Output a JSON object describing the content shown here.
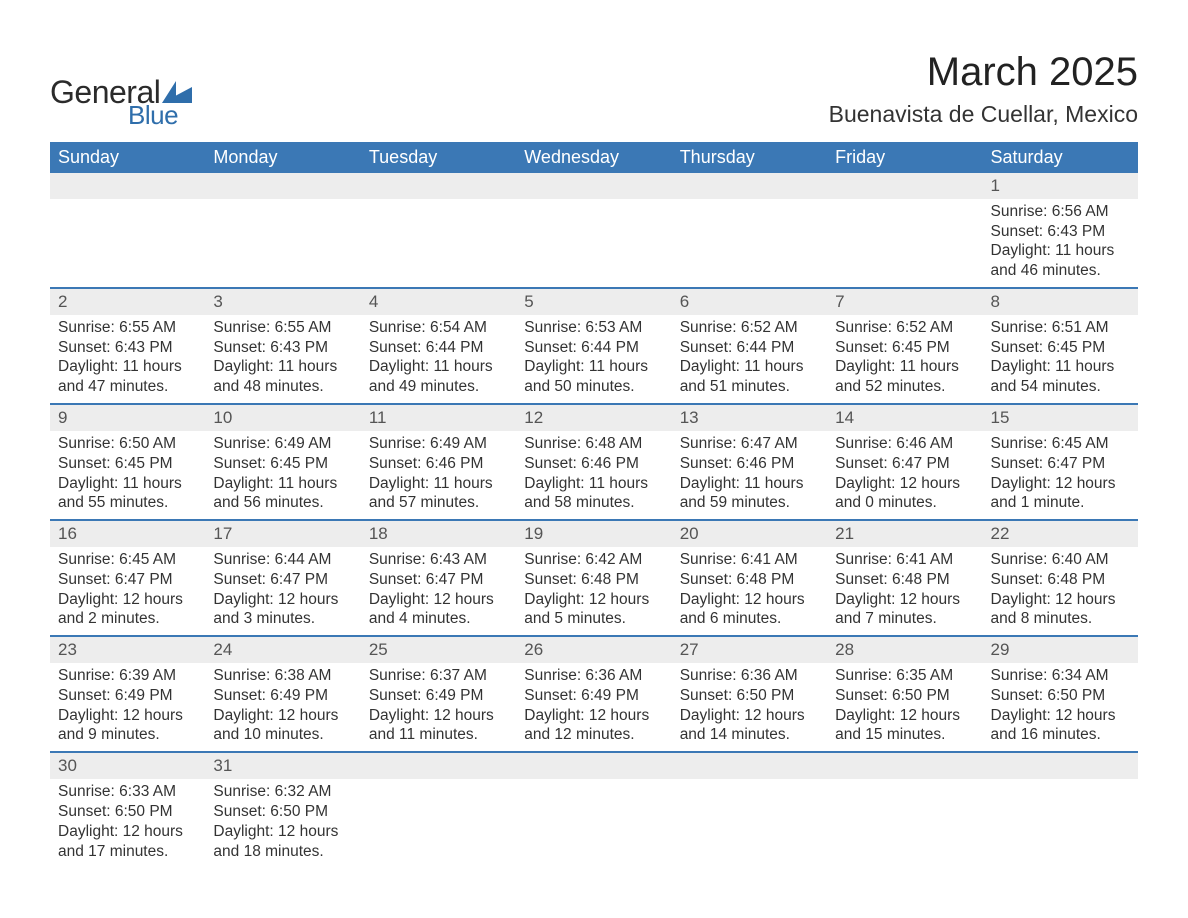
{
  "brand": {
    "word1": "General",
    "word2": "Blue",
    "accent_color": "#2f6eab"
  },
  "title": "March 2025",
  "location": "Buenavista de Cuellar, Mexico",
  "header_bg": "#3b78b5",
  "header_fg": "#ffffff",
  "daynum_bg": "#ededed",
  "divider_color": "#3b78b5",
  "text_color": "#333333",
  "day_headers": [
    "Sunday",
    "Monday",
    "Tuesday",
    "Wednesday",
    "Thursday",
    "Friday",
    "Saturday"
  ],
  "weeks": [
    [
      null,
      null,
      null,
      null,
      null,
      null,
      {
        "n": "1",
        "sunrise": "Sunrise: 6:56 AM",
        "sunset": "Sunset: 6:43 PM",
        "d1": "Daylight: 11 hours",
        "d2": "and 46 minutes."
      }
    ],
    [
      {
        "n": "2",
        "sunrise": "Sunrise: 6:55 AM",
        "sunset": "Sunset: 6:43 PM",
        "d1": "Daylight: 11 hours",
        "d2": "and 47 minutes."
      },
      {
        "n": "3",
        "sunrise": "Sunrise: 6:55 AM",
        "sunset": "Sunset: 6:43 PM",
        "d1": "Daylight: 11 hours",
        "d2": "and 48 minutes."
      },
      {
        "n": "4",
        "sunrise": "Sunrise: 6:54 AM",
        "sunset": "Sunset: 6:44 PM",
        "d1": "Daylight: 11 hours",
        "d2": "and 49 minutes."
      },
      {
        "n": "5",
        "sunrise": "Sunrise: 6:53 AM",
        "sunset": "Sunset: 6:44 PM",
        "d1": "Daylight: 11 hours",
        "d2": "and 50 minutes."
      },
      {
        "n": "6",
        "sunrise": "Sunrise: 6:52 AM",
        "sunset": "Sunset: 6:44 PM",
        "d1": "Daylight: 11 hours",
        "d2": "and 51 minutes."
      },
      {
        "n": "7",
        "sunrise": "Sunrise: 6:52 AM",
        "sunset": "Sunset: 6:45 PM",
        "d1": "Daylight: 11 hours",
        "d2": "and 52 minutes."
      },
      {
        "n": "8",
        "sunrise": "Sunrise: 6:51 AM",
        "sunset": "Sunset: 6:45 PM",
        "d1": "Daylight: 11 hours",
        "d2": "and 54 minutes."
      }
    ],
    [
      {
        "n": "9",
        "sunrise": "Sunrise: 6:50 AM",
        "sunset": "Sunset: 6:45 PM",
        "d1": "Daylight: 11 hours",
        "d2": "and 55 minutes."
      },
      {
        "n": "10",
        "sunrise": "Sunrise: 6:49 AM",
        "sunset": "Sunset: 6:45 PM",
        "d1": "Daylight: 11 hours",
        "d2": "and 56 minutes."
      },
      {
        "n": "11",
        "sunrise": "Sunrise: 6:49 AM",
        "sunset": "Sunset: 6:46 PM",
        "d1": "Daylight: 11 hours",
        "d2": "and 57 minutes."
      },
      {
        "n": "12",
        "sunrise": "Sunrise: 6:48 AM",
        "sunset": "Sunset: 6:46 PM",
        "d1": "Daylight: 11 hours",
        "d2": "and 58 minutes."
      },
      {
        "n": "13",
        "sunrise": "Sunrise: 6:47 AM",
        "sunset": "Sunset: 6:46 PM",
        "d1": "Daylight: 11 hours",
        "d2": "and 59 minutes."
      },
      {
        "n": "14",
        "sunrise": "Sunrise: 6:46 AM",
        "sunset": "Sunset: 6:47 PM",
        "d1": "Daylight: 12 hours",
        "d2": "and 0 minutes."
      },
      {
        "n": "15",
        "sunrise": "Sunrise: 6:45 AM",
        "sunset": "Sunset: 6:47 PM",
        "d1": "Daylight: 12 hours",
        "d2": "and 1 minute."
      }
    ],
    [
      {
        "n": "16",
        "sunrise": "Sunrise: 6:45 AM",
        "sunset": "Sunset: 6:47 PM",
        "d1": "Daylight: 12 hours",
        "d2": "and 2 minutes."
      },
      {
        "n": "17",
        "sunrise": "Sunrise: 6:44 AM",
        "sunset": "Sunset: 6:47 PM",
        "d1": "Daylight: 12 hours",
        "d2": "and 3 minutes."
      },
      {
        "n": "18",
        "sunrise": "Sunrise: 6:43 AM",
        "sunset": "Sunset: 6:47 PM",
        "d1": "Daylight: 12 hours",
        "d2": "and 4 minutes."
      },
      {
        "n": "19",
        "sunrise": "Sunrise: 6:42 AM",
        "sunset": "Sunset: 6:48 PM",
        "d1": "Daylight: 12 hours",
        "d2": "and 5 minutes."
      },
      {
        "n": "20",
        "sunrise": "Sunrise: 6:41 AM",
        "sunset": "Sunset: 6:48 PM",
        "d1": "Daylight: 12 hours",
        "d2": "and 6 minutes."
      },
      {
        "n": "21",
        "sunrise": "Sunrise: 6:41 AM",
        "sunset": "Sunset: 6:48 PM",
        "d1": "Daylight: 12 hours",
        "d2": "and 7 minutes."
      },
      {
        "n": "22",
        "sunrise": "Sunrise: 6:40 AM",
        "sunset": "Sunset: 6:48 PM",
        "d1": "Daylight: 12 hours",
        "d2": "and 8 minutes."
      }
    ],
    [
      {
        "n": "23",
        "sunrise": "Sunrise: 6:39 AM",
        "sunset": "Sunset: 6:49 PM",
        "d1": "Daylight: 12 hours",
        "d2": "and 9 minutes."
      },
      {
        "n": "24",
        "sunrise": "Sunrise: 6:38 AM",
        "sunset": "Sunset: 6:49 PM",
        "d1": "Daylight: 12 hours",
        "d2": "and 10 minutes."
      },
      {
        "n": "25",
        "sunrise": "Sunrise: 6:37 AM",
        "sunset": "Sunset: 6:49 PM",
        "d1": "Daylight: 12 hours",
        "d2": "and 11 minutes."
      },
      {
        "n": "26",
        "sunrise": "Sunrise: 6:36 AM",
        "sunset": "Sunset: 6:49 PM",
        "d1": "Daylight: 12 hours",
        "d2": "and 12 minutes."
      },
      {
        "n": "27",
        "sunrise": "Sunrise: 6:36 AM",
        "sunset": "Sunset: 6:50 PM",
        "d1": "Daylight: 12 hours",
        "d2": "and 14 minutes."
      },
      {
        "n": "28",
        "sunrise": "Sunrise: 6:35 AM",
        "sunset": "Sunset: 6:50 PM",
        "d1": "Daylight: 12 hours",
        "d2": "and 15 minutes."
      },
      {
        "n": "29",
        "sunrise": "Sunrise: 6:34 AM",
        "sunset": "Sunset: 6:50 PM",
        "d1": "Daylight: 12 hours",
        "d2": "and 16 minutes."
      }
    ],
    [
      {
        "n": "30",
        "sunrise": "Sunrise: 6:33 AM",
        "sunset": "Sunset: 6:50 PM",
        "d1": "Daylight: 12 hours",
        "d2": "and 17 minutes."
      },
      {
        "n": "31",
        "sunrise": "Sunrise: 6:32 AM",
        "sunset": "Sunset: 6:50 PM",
        "d1": "Daylight: 12 hours",
        "d2": "and 18 minutes."
      },
      null,
      null,
      null,
      null,
      null
    ]
  ]
}
